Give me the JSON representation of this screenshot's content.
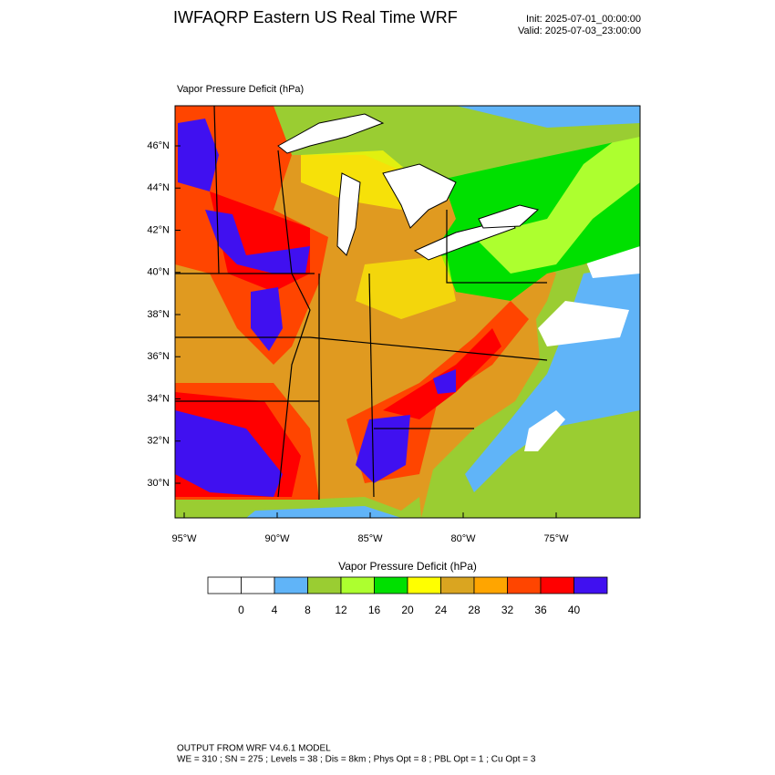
{
  "header": {
    "title": "IWFAQRP Eastern US Real Time WRF",
    "init": "Init: 2025-07-01_00:00:00",
    "valid": "Valid: 2025-07-03_23:00:00"
  },
  "map": {
    "field_label": "Vapor Pressure Deficit   (hPa)",
    "lat_labels": [
      "46°N",
      "44°N",
      "42°N",
      "40°N",
      "38°N",
      "36°N",
      "34°N",
      "32°N",
      "30°N"
    ],
    "lon_labels": [
      "95°W",
      "90°W",
      "85°W",
      "80°W",
      "75°W"
    ]
  },
  "colorbar": {
    "title": "Vapor Pressure Deficit  (hPa)",
    "levels": [
      0,
      4,
      8,
      12,
      16,
      20,
      24,
      28,
      32,
      36,
      40
    ],
    "colors": [
      "#ffffff",
      "#ffffff",
      "#60b4f8",
      "#9acd32",
      "#adff2f",
      "#00e000",
      "#ffff00",
      "#daa520",
      "#ffa500",
      "#ff4500",
      "#ff0000",
      "#4010f0"
    ]
  },
  "footer": {
    "line1": "OUTPUT FROM WRF V4.6.1 MODEL",
    "line2": "WE = 310 ; SN = 275 ; Levels = 38 ; Dis = 8km ; Phys Opt = 8 ; PBL Opt = 1 ; Cu Opt = 3"
  }
}
